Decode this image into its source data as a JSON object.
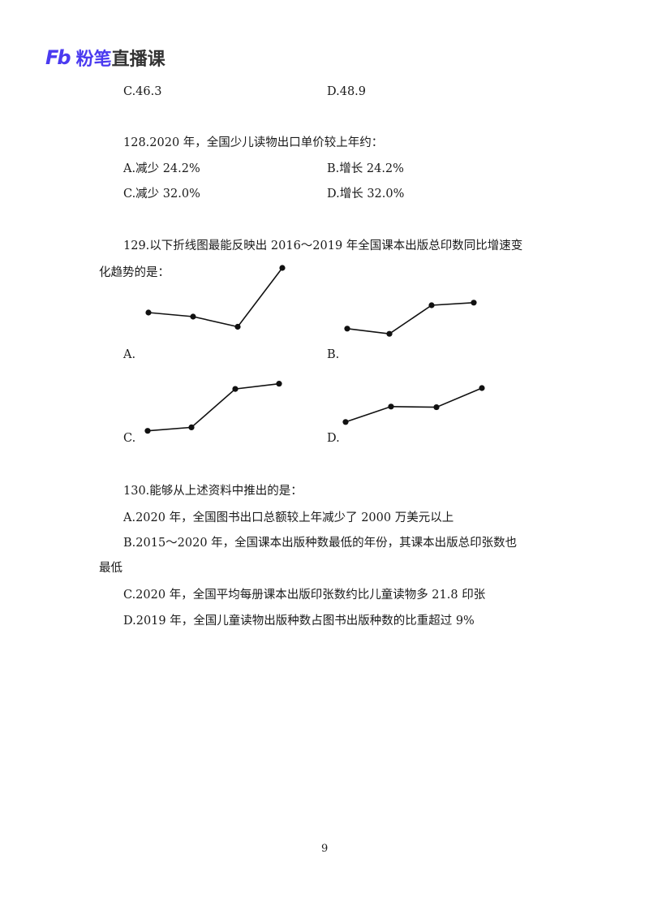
{
  "header": {
    "logo_mark": "Fb",
    "logo_text_accent": "粉笔",
    "logo_text": "直播课",
    "accent_color": "#4b3bf0"
  },
  "q127": {
    "options": [
      "C.46.3",
      "D.48.9"
    ]
  },
  "q128": {
    "question": "128.2020 年，全国少儿读物出口单价较上年约：",
    "options": [
      "A.减少 24.2%",
      "B.增长 24.2%",
      "C.减少 32.0%",
      "D.增长 32.0%"
    ]
  },
  "q129": {
    "question_line1": "129.以下折线图最能反映出 2016～2019 年全国课本出版总印数同比增速变",
    "question_line2": "化趋势的是：",
    "labels": [
      "A.",
      "B.",
      "C.",
      "D."
    ]
  },
  "chart_data": [
    {
      "type": "line",
      "option": "A",
      "values": [
        1.1,
        1.0,
        0.75,
        2.2
      ]
    },
    {
      "type": "line",
      "option": "B",
      "values": [
        1.1,
        0.9,
        2.0,
        2.1
      ]
    },
    {
      "type": "line",
      "option": "C",
      "values": [
        0.1,
        0.2,
        1.3,
        1.45
      ]
    },
    {
      "type": "line",
      "option": "D",
      "values": [
        0.4,
        0.9,
        0.88,
        1.5
      ]
    }
  ],
  "q130": {
    "question": "130.能够从上述资料中推出的是：",
    "option_a": "A.2020 年，全国图书出口总额较上年减少了 2000 万美元以上",
    "option_b_line1": "B.2015～2020 年，全国课本出版种数最低的年份，其课本出版总印张数也",
    "option_b_line2": "最低",
    "option_c": "C.2020 年，全国平均每册课本出版印张数约比儿童读物多 21.8 印张",
    "option_d": "D.2019 年，全国儿童读物出版种数占图书出版种数的比重超过 9%"
  },
  "footer": {
    "page_number": "9"
  }
}
